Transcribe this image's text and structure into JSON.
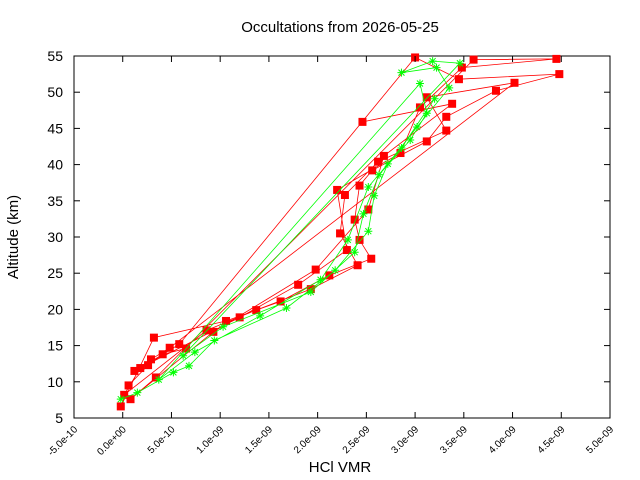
{
  "chart_data": {
    "type": "scatter",
    "title": "Occultations from 2026-05-25",
    "xlabel": "HCl VMR",
    "ylabel": "Altitude (km)",
    "xlim": [
      -5e-10,
      5e-09
    ],
    "ylim": [
      5,
      55
    ],
    "x_ticks": [
      "-5.0e-10",
      "0.0e+00",
      "5.0e-10",
      "1.0e-09",
      "1.5e-09",
      "2.0e-09",
      "2.5e-09",
      "3.0e-09",
      "3.5e-09",
      "4.0e-09",
      "4.5e-09",
      "5.0e-09"
    ],
    "y_ticks": [
      "5",
      "10",
      "15",
      "20",
      "25",
      "30",
      "35",
      "40",
      "45",
      "50",
      "55"
    ],
    "grid": false,
    "legend": "none",
    "series_styles": [
      {
        "color": "#ff0000",
        "marker": "filled-square",
        "line": true
      },
      {
        "color": "#00ff00",
        "marker": "plus-cross",
        "line": true
      }
    ],
    "series": [
      {
        "values": [
          [
            6.5e-10,
            14.6
          ],
          [
            4.1e-10,
            13.8
          ],
          [
            2.6e-10,
            12.3
          ],
          [
            6e-11,
            9.5
          ],
          [
            -2e-11,
            6.6
          ],
          [
            3.2e-10,
            16.1
          ],
          [
            1.06e-09,
            18.4
          ],
          [
            1.62e-09,
            21.1
          ],
          [
            2.12e-09,
            24.7
          ],
          [
            2.55e-09,
            27.0
          ],
          [
            2.43e-09,
            29.6
          ],
          [
            2.38e-09,
            32.4
          ],
          [
            2.43e-09,
            37.1
          ],
          [
            2.56e-09,
            39.2
          ],
          [
            3.12e-09,
            43.2
          ],
          [
            3.32e-09,
            46.6
          ],
          [
            3.83e-09,
            50.2
          ],
          [
            4.48e-09,
            52.5
          ],
          [
            3.45e-09,
            51.8
          ],
          [
            3e-09,
            54.8
          ],
          [
            5.8e-10,
            15.2
          ],
          [
            1.8e-10,
            11.9
          ],
          [
            1.5e-11,
            8.2
          ],
          [
            8.6e-10,
            17.1
          ],
          [
            1.37e-09,
            19.9
          ],
          [
            1.93e-09,
            22.8
          ],
          [
            2.41e-09,
            26.1
          ],
          [
            2.23e-09,
            30.5
          ],
          [
            2.28e-09,
            35.8
          ],
          [
            2.62e-09,
            40.4
          ],
          [
            3.32e-09,
            44.7
          ],
          [
            3.12e-09,
            49.3
          ],
          [
            4.02e-09,
            51.3
          ],
          [
            4.82e-10,
            14.7
          ],
          [
            2.9e-10,
            13.1
          ],
          [
            1.2e-10,
            11.5
          ],
          [
            1.2e-09,
            18.9
          ],
          [
            1.8e-09,
            23.4
          ],
          [
            2.3e-09,
            28.2
          ],
          [
            2.2e-09,
            36.5
          ],
          [
            2.85e-09,
            41.6
          ],
          [
            3.05e-09,
            47.9
          ],
          [
            3.48e-09,
            53.4
          ],
          [
            4.45e-09,
            54.6
          ],
          [
            3.6e-09,
            54.5
          ],
          [
            3.4e-10,
            10.6
          ],
          [
            8e-11,
            7.6
          ],
          [
            9.3e-10,
            16.9
          ],
          [
            1.98e-09,
            25.5
          ],
          [
            2.52e-09,
            33.8
          ],
          [
            2.68e-09,
            41.2
          ],
          [
            3.38e-09,
            48.4
          ],
          [
            2.46e-09,
            45.9
          ]
        ]
      },
      {
        "values": [
          [
            -2e-11,
            7.6
          ],
          [
            1.5e-10,
            8.5
          ],
          [
            5.2e-10,
            11.3
          ],
          [
            6.8e-10,
            12.2
          ],
          [
            9.4e-10,
            15.7
          ],
          [
            1.68e-09,
            20.2
          ],
          [
            2.18e-09,
            25.4
          ],
          [
            2.52e-09,
            30.8
          ],
          [
            2.58e-09,
            35.7
          ],
          [
            2.72e-09,
            40.1
          ],
          [
            3.02e-09,
            45.2
          ],
          [
            3.35e-09,
            50.6
          ],
          [
            3.22e-09,
            53.4
          ],
          [
            2.86e-09,
            52.7
          ],
          [
            3.18e-09,
            54.3
          ],
          [
            3.46e-09,
            54.0
          ],
          [
            6.2e-10,
            13.6
          ],
          [
            1.03e-09,
            17.6
          ],
          [
            1.93e-09,
            22.4
          ],
          [
            2.38e-09,
            27.9
          ],
          [
            2.47e-09,
            33.2
          ],
          [
            2.63e-09,
            38.6
          ],
          [
            2.95e-09,
            43.4
          ],
          [
            3.12e-09,
            47.1
          ],
          [
            3.05e-09,
            51.2
          ],
          [
            3.7e-10,
            10.3
          ],
          [
            7.4e-10,
            14.1
          ],
          [
            1.41e-09,
            19.1
          ],
          [
            2.03e-09,
            24.1
          ],
          [
            2.31e-09,
            29.6
          ],
          [
            2.52e-09,
            36.9
          ],
          [
            2.86e-09,
            42.3
          ],
          [
            3.2e-09,
            49.1
          ]
        ]
      }
    ]
  }
}
